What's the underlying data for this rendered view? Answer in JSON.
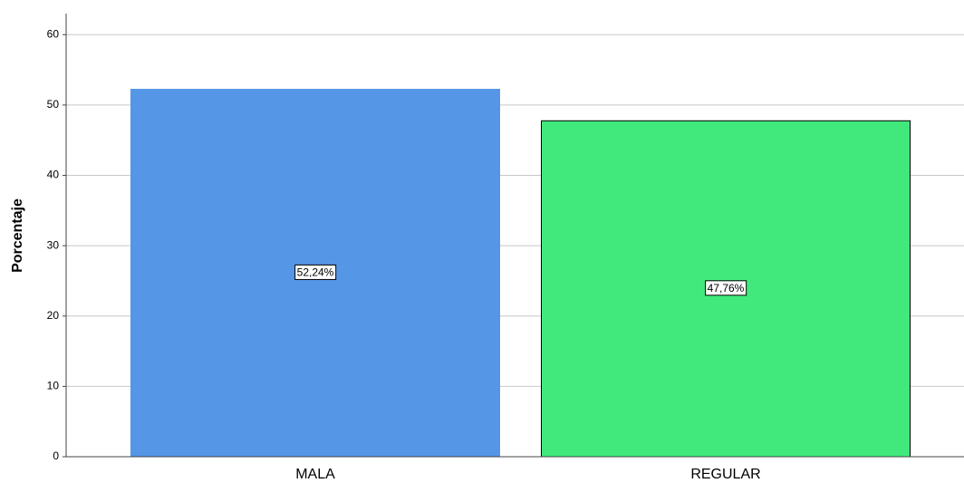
{
  "chart_data": {
    "type": "bar",
    "y_label": "Porcentaje",
    "categories": [
      "MALA",
      "REGULAR"
    ],
    "values": [
      52.24,
      47.76
    ],
    "value_labels": [
      "52,24%",
      "47,76%"
    ],
    "colors": [
      "#5596e6",
      "#41e97c"
    ],
    "ylim": [
      0,
      63
    ],
    "yticks": [
      0,
      10,
      20,
      30,
      40,
      50,
      60
    ],
    "grid": true
  }
}
